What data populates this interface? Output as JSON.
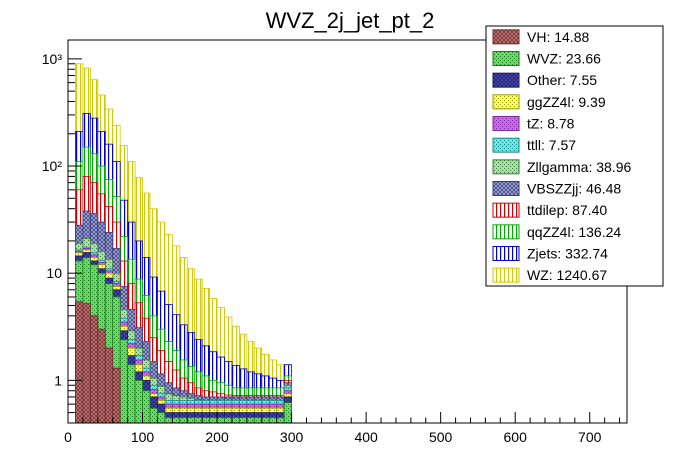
{
  "chart_data": {
    "type": "bar",
    "title": "WVZ_2j_jet_pt_2",
    "xlabel": "",
    "ylabel": "",
    "x_bin_width": 10,
    "x_bin_start": 10,
    "xlim": [
      0,
      750
    ],
    "ylim": [
      0.4,
      1500
    ],
    "y_scale": "log",
    "x_ticks": [
      0,
      100,
      200,
      300,
      400,
      500,
      600,
      700
    ],
    "y_ticks": [
      {
        "value": 1,
        "label": "1"
      },
      {
        "value": 10,
        "label": "10"
      },
      {
        "value": 100,
        "label": "10²"
      },
      {
        "value": 1000,
        "label": "10³"
      }
    ],
    "grid": false,
    "legend_position": "top-right",
    "series": [
      {
        "name": "VH: 14.88",
        "fill": "#c27878",
        "pattern": "cross",
        "edge": "#6b2a2a",
        "values": [
          5.4,
          5.2,
          4.0,
          3.0,
          2.0,
          1.3,
          0.4,
          0.4,
          0.4,
          0.4,
          0.4,
          0.4,
          0.4,
          0.4,
          0.4,
          0.4,
          0.4,
          0.4,
          0.4,
          0.4,
          0.4,
          0.4,
          0.4,
          0.4,
          0.4,
          0.4,
          0.4,
          0.4,
          0.4
        ]
      },
      {
        "name": "WVZ: 23.66",
        "fill": "#66d966",
        "pattern": "dots",
        "edge": "#1f7a1f",
        "values": [
          13,
          14,
          12,
          10,
          8,
          6,
          2.4,
          1.4,
          1.0,
          0.8,
          0.55,
          0.5,
          0.45,
          0.45,
          0.45,
          0.45,
          0.45,
          0.45,
          0.45,
          0.45,
          0.45,
          0.45,
          0.45,
          0.45,
          0.45,
          0.45,
          0.45,
          0.45,
          0.62
        ]
      },
      {
        "name": "Other: 7.55",
        "fill": "#4a4ab0",
        "pattern": "cross",
        "edge": "#1a1a6b",
        "values": [
          14.5,
          15.6,
          13,
          11,
          9,
          7,
          2.9,
          1.7,
          1.2,
          1.0,
          0.7,
          0.6,
          0.5,
          0.5,
          0.5,
          0.5,
          0.5,
          0.5,
          0.5,
          0.5,
          0.5,
          0.5,
          0.5,
          0.5,
          0.5,
          0.5,
          0.5,
          0.5,
          0.7
        ]
      },
      {
        "name": "ggZZ4l: 9.39",
        "fill": "#ffff66",
        "pattern": "dots",
        "edge": "#9a9a00",
        "values": [
          15.5,
          16.5,
          14,
          12,
          10,
          7.5,
          3.2,
          2.0,
          1.4,
          1.1,
          0.75,
          0.65,
          0.55,
          0.55,
          0.55,
          0.55,
          0.55,
          0.55,
          0.55,
          0.55,
          0.55,
          0.55,
          0.55,
          0.55,
          0.55,
          0.55,
          0.55,
          0.55,
          0.75
        ]
      },
      {
        "name": "tZ: 8.78",
        "fill": "#cc66ee",
        "pattern": "dots",
        "edge": "#7a2a99",
        "values": [
          16,
          17,
          14.8,
          12.6,
          10.5,
          8.0,
          3.5,
          2.2,
          1.55,
          1.2,
          0.82,
          0.7,
          0.6,
          0.6,
          0.6,
          0.6,
          0.6,
          0.6,
          0.6,
          0.6,
          0.6,
          0.6,
          0.6,
          0.6,
          0.6,
          0.6,
          0.6,
          0.6,
          0.8
        ]
      },
      {
        "name": "ttll: 7.57",
        "fill": "#66e6e6",
        "pattern": "dots",
        "edge": "#1a8a8a",
        "values": [
          16.5,
          17.5,
          15.5,
          13.2,
          11,
          8.4,
          3.8,
          2.4,
          1.7,
          1.3,
          0.9,
          0.76,
          0.65,
          0.65,
          0.65,
          0.65,
          0.65,
          0.65,
          0.65,
          0.65,
          0.65,
          0.65,
          0.65,
          0.65,
          0.65,
          0.65,
          0.65,
          0.65,
          0.85
        ]
      },
      {
        "name": "Zllgamma: 38.96",
        "fill": "#a8dea8",
        "pattern": "dots",
        "edge": "#3d7a3d",
        "values": [
          19,
          21,
          19,
          16,
          13.5,
          10,
          4.6,
          2.9,
          2.0,
          1.55,
          1.05,
          0.88,
          0.75,
          0.72,
          0.7,
          0.68,
          0.66,
          0.65,
          0.65,
          0.65,
          0.65,
          0.65,
          0.65,
          0.65,
          0.65,
          0.65,
          0.65,
          0.65,
          0.9
        ]
      },
      {
        "name": "VBSZZjj: 46.48",
        "fill": "#a0a8d8",
        "pattern": "cross",
        "edge": "#3a3a7a",
        "values": [
          28,
          38,
          36,
          30,
          24,
          17,
          7.5,
          4.6,
          3.1,
          2.3,
          1.5,
          1.15,
          0.95,
          0.85,
          0.8,
          0.75,
          0.72,
          0.7,
          0.7,
          0.7,
          0.7,
          0.7,
          0.7,
          0.7,
          0.7,
          0.7,
          0.7,
          0.7,
          0.95
        ]
      },
      {
        "name": "ttdilep: 87.40",
        "fill": "#ffffff",
        "pattern": "vlines-red",
        "edge": "#cc0000",
        "values": [
          60,
          80,
          70,
          55,
          42,
          30,
          13,
          8,
          5.3,
          3.8,
          2.5,
          1.9,
          1.5,
          1.25,
          1.05,
          0.95,
          0.85,
          0.8,
          0.78,
          0.75,
          0.73,
          0.72,
          0.72,
          0.72,
          0.72,
          0.72,
          0.72,
          0.72,
          1.0
        ]
      },
      {
        "name": "qqZZ4l: 136.24",
        "fill": "#ffffff",
        "pattern": "vlines-green",
        "edge": "#00aa00",
        "values": [
          110,
          150,
          130,
          100,
          75,
          52,
          22,
          13.5,
          8.8,
          6.2,
          4.0,
          3.0,
          2.3,
          1.9,
          1.55,
          1.35,
          1.2,
          1.1,
          1.0,
          0.95,
          0.9,
          0.85,
          0.85,
          0.85,
          0.85,
          0.85,
          0.85,
          0.85,
          1.1
        ]
      },
      {
        "name": "Zjets: 332.74",
        "fill": "#ffffff",
        "pattern": "vlines-blue",
        "edge": "#0000cc",
        "values": [
          210,
          310,
          280,
          210,
          160,
          110,
          48,
          30,
          20,
          14,
          9.2,
          6.8,
          5.1,
          4.1,
          3.3,
          2.8,
          2.4,
          2.1,
          1.85,
          1.65,
          1.5,
          1.38,
          1.28,
          1.2,
          1.15,
          1.1,
          1.05,
          1.0,
          1.4
        ]
      },
      {
        "name": "WZ: 1240.67",
        "fill": "#ffffff",
        "pattern": "vlines-yellow",
        "edge": "#d4c800",
        "values": [
          900,
          820,
          640,
          460,
          340,
          240,
          155,
          110,
          78,
          56,
          40,
          30,
          23,
          18,
          14,
          11,
          8.8,
          7.2,
          5.8,
          4.8,
          3.9,
          3.2,
          2.7,
          2.3,
          2.0,
          1.75,
          1.55,
          1.4,
          1.3
        ]
      }
    ]
  }
}
